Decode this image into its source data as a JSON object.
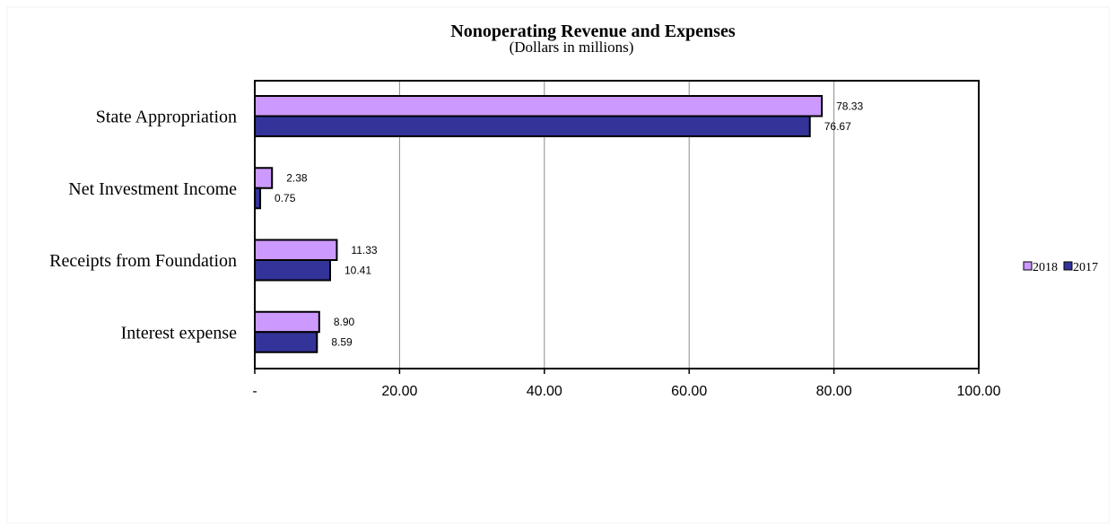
{
  "chart_data": {
    "type": "bar",
    "orientation": "horizontal",
    "title": "Nonoperating Revenue and Expenses",
    "subtitle": "(Dollars in millions)",
    "categories": [
      "State Appropriation",
      "Net Investment Income",
      "Receipts from Foundation",
      "Interest expense"
    ],
    "series": [
      {
        "name": "2018",
        "color": "#cc99ff",
        "values": [
          78.33,
          2.38,
          11.33,
          8.9
        ],
        "labels": [
          "78.33",
          "2.38",
          "11.33",
          "8.90"
        ]
      },
      {
        "name": "2017",
        "color": "#333399",
        "values": [
          76.67,
          0.75,
          10.41,
          8.59
        ],
        "labels": [
          "76.67",
          "0.75",
          "10.41",
          "8.59"
        ]
      }
    ],
    "xlim": [
      0,
      100
    ],
    "x_ticks": [
      0,
      20,
      40,
      60,
      80,
      100
    ],
    "x_tick_labels": [
      "-",
      "20.00",
      "40.00",
      "60.00",
      "80.00",
      "100.00"
    ],
    "grid": true,
    "legend_position": "right"
  }
}
